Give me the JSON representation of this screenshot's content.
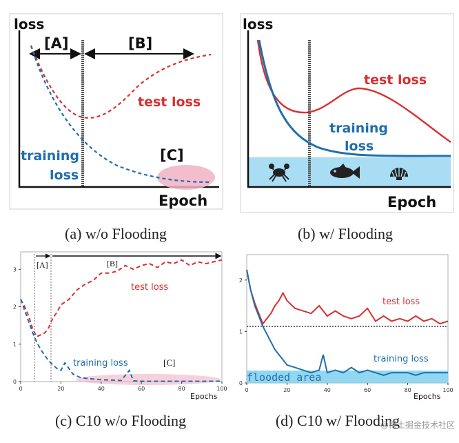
{
  "figure": {
    "panel_a": {
      "caption": "(a) w/o Flooding",
      "y_label": "loss",
      "x_label": "Epoch",
      "region_a": "[A]",
      "region_b": "[B]",
      "region_c": "[C]",
      "test_label": "test loss",
      "training_label_1": "training",
      "training_label_2": "loss"
    },
    "panel_b": {
      "caption": "(b) w/ Flooding",
      "y_label": "loss",
      "x_label": "Epoch",
      "test_label": "test loss",
      "training_label_1": "training",
      "training_label_2": "loss",
      "icons": [
        "crab-icon",
        "fish-icon",
        "shell-icon"
      ]
    },
    "panel_c": {
      "caption": "(c) C10 w/o Flooding",
      "x_label": "Epochs",
      "region_a": "[A]",
      "region_b": "[B]",
      "region_c": "[C]",
      "test_label": "test loss",
      "training_label": "training loss",
      "x_ticks": [
        "0",
        "20",
        "40",
        "60",
        "80",
        "100"
      ],
      "y_ticks": [
        "0",
        "1",
        "2",
        "3"
      ]
    },
    "panel_d": {
      "caption": "(d) C10 w/ Flooding",
      "x_label": "Epochs",
      "test_label": "test loss",
      "training_label": "training loss",
      "flood_label": "flooded area",
      "x_ticks": [
        "0",
        "20",
        "40",
        "60",
        "80",
        "100"
      ],
      "y_ticks": [
        "0",
        "1",
        "2"
      ]
    },
    "watermark": "@稀土掘金技术社区"
  },
  "colors": {
    "test": "#d93030",
    "train": "#1f6fad",
    "flood": "#a8ddf3",
    "pink": "#f0b2c4",
    "frame": "#cfcfcf"
  },
  "chart_data": [
    {
      "type": "line",
      "title": "(c) C10 w/o Flooding",
      "xlabel": "Epochs",
      "ylabel": "",
      "xlim": [
        0,
        100
      ],
      "ylim": [
        0,
        3.3
      ],
      "series": [
        {
          "name": "test loss",
          "x": [
            0,
            2,
            4,
            6,
            8,
            10,
            12,
            14,
            16,
            18,
            20,
            24,
            28,
            32,
            36,
            40,
            44,
            48,
            52,
            56,
            60,
            64,
            68,
            72,
            76,
            80,
            84,
            88,
            92,
            96,
            100
          ],
          "values": [
            2.2,
            2.0,
            1.75,
            1.4,
            1.2,
            1.25,
            1.3,
            1.45,
            1.7,
            1.85,
            2.05,
            2.2,
            2.45,
            2.6,
            2.7,
            2.9,
            2.9,
            2.95,
            3.1,
            3.0,
            3.1,
            3.15,
            3.05,
            3.2,
            3.15,
            3.25,
            3.1,
            3.2,
            3.15,
            3.2,
            3.25
          ]
        },
        {
          "name": "training loss",
          "x": [
            0,
            2,
            4,
            6,
            8,
            10,
            12,
            14,
            16,
            18,
            20,
            22,
            26,
            30,
            40,
            50,
            54,
            56,
            60,
            70,
            80,
            90,
            100
          ],
          "values": [
            2.2,
            1.9,
            1.6,
            1.3,
            1.05,
            0.85,
            0.7,
            0.55,
            0.45,
            0.35,
            0.3,
            0.5,
            0.2,
            0.1,
            0.05,
            0.03,
            0.3,
            0.02,
            0.01,
            0.01,
            0.01,
            0.01,
            0.01
          ]
        }
      ],
      "vlines": [
        7,
        15
      ]
    },
    {
      "type": "line",
      "title": "(d) C10 w/ Flooding",
      "xlabel": "Epochs",
      "ylabel": "",
      "xlim": [
        0,
        100
      ],
      "ylim": [
        0,
        2.4
      ],
      "flood_level": 1.1,
      "series": [
        {
          "name": "test loss",
          "x": [
            0,
            2,
            4,
            6,
            8,
            10,
            12,
            14,
            16,
            18,
            20,
            24,
            28,
            32,
            36,
            40,
            44,
            48,
            52,
            56,
            60,
            64,
            68,
            72,
            76,
            80,
            84,
            88,
            92,
            96,
            100
          ],
          "values": [
            2.2,
            1.8,
            1.55,
            1.35,
            1.15,
            1.25,
            1.35,
            1.5,
            1.6,
            1.75,
            1.6,
            1.45,
            1.4,
            1.35,
            1.5,
            1.3,
            1.4,
            1.3,
            1.25,
            1.3,
            1.45,
            1.2,
            1.3,
            1.2,
            1.25,
            1.2,
            1.3,
            1.2,
            1.25,
            1.15,
            1.2
          ]
        },
        {
          "name": "training loss",
          "x": [
            0,
            2,
            4,
            6,
            8,
            10,
            12,
            14,
            16,
            18,
            20,
            24,
            28,
            32,
            36,
            38,
            40,
            44,
            48,
            52,
            56,
            60,
            64,
            68,
            72,
            76,
            80,
            84,
            88,
            92,
            96,
            100
          ],
          "values": [
            2.2,
            1.8,
            1.5,
            1.3,
            1.1,
            0.95,
            0.8,
            0.65,
            0.55,
            0.45,
            0.35,
            0.3,
            0.25,
            0.2,
            0.25,
            0.55,
            0.2,
            0.25,
            0.2,
            0.3,
            0.2,
            0.25,
            0.2,
            0.15,
            0.2,
            0.2,
            0.2,
            0.15,
            0.2,
            0.2,
            0.2,
            0.2
          ]
        }
      ]
    }
  ]
}
